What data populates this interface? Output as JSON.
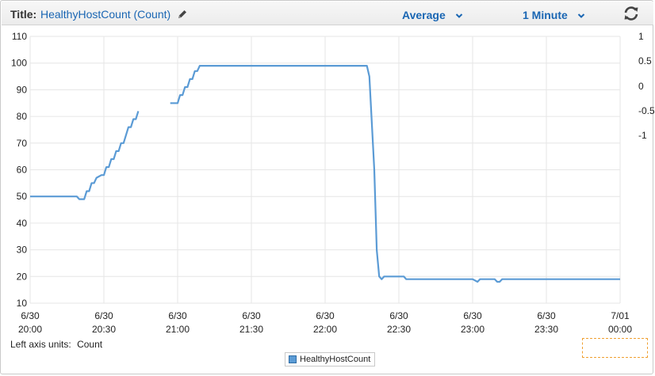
{
  "header": {
    "title_label": "Title:",
    "title_value": "HealthyHostCount (Count)",
    "statistic": "Average",
    "period": "1 Minute",
    "icons": [
      "pencil-icon",
      "chevron-down-icon",
      "refresh-icon"
    ]
  },
  "footer": {
    "units_label": "Left axis units:",
    "units_value": "Count"
  },
  "legend": {
    "label": "HealthyHostCount"
  },
  "colors": {
    "series": "#5b9bd5",
    "link": "#1a66b3",
    "grid": "#e6e6e6"
  },
  "chart_data": {
    "type": "line",
    "title": "HealthyHostCount (Count)",
    "ylabel": "Count",
    "ylim": [
      10,
      110
    ],
    "yticks": [
      "10",
      "20",
      "30",
      "40",
      "50",
      "60",
      "70",
      "80",
      "90",
      "100",
      "110"
    ],
    "right_yticks": [
      "1",
      "0.5",
      "0",
      "-0.5",
      "-1"
    ],
    "xlim": [
      0,
      240
    ],
    "xticks": [
      {
        "x": 0,
        "top": "6/30",
        "bottom": "20:00"
      },
      {
        "x": 30,
        "top": "6/30",
        "bottom": "20:30"
      },
      {
        "x": 60,
        "top": "6/30",
        "bottom": "21:00"
      },
      {
        "x": 90,
        "top": "6/30",
        "bottom": "21:30"
      },
      {
        "x": 120,
        "top": "6/30",
        "bottom": "22:00"
      },
      {
        "x": 150,
        "top": "6/30",
        "bottom": "22:30"
      },
      {
        "x": 180,
        "top": "6/30",
        "bottom": "23:00"
      },
      {
        "x": 210,
        "top": "6/30",
        "bottom": "23:30"
      },
      {
        "x": 240,
        "top": "7/01",
        "bottom": "00:00"
      }
    ],
    "grid": true,
    "legend_position": "bottom-center",
    "series": [
      {
        "name": "HealthyHostCount",
        "segments": [
          [
            [
              0,
              50
            ],
            [
              19,
              50
            ],
            [
              20,
              49
            ],
            [
              22,
              49
            ],
            [
              23,
              52
            ],
            [
              24,
              52
            ],
            [
              25,
              55
            ],
            [
              26,
              55
            ],
            [
              27,
              57
            ],
            [
              29,
              58
            ],
            [
              30,
              58
            ],
            [
              31,
              61
            ],
            [
              32,
              61
            ],
            [
              33,
              64
            ],
            [
              34,
              64
            ],
            [
              35,
              67
            ],
            [
              36,
              67
            ],
            [
              37,
              70
            ],
            [
              38,
              70
            ],
            [
              39,
              73
            ],
            [
              40,
              76
            ],
            [
              41,
              76
            ],
            [
              42,
              79
            ],
            [
              43,
              79
            ],
            [
              44,
              82
            ]
          ],
          [
            [
              57,
              85
            ],
            [
              60,
              85
            ],
            [
              61,
              88
            ],
            [
              62,
              88
            ],
            [
              63,
              91
            ],
            [
              64,
              91
            ],
            [
              65,
              94
            ],
            [
              66,
              94
            ],
            [
              67,
              97
            ],
            [
              68,
              97
            ],
            [
              69,
              99
            ],
            [
              74,
              99
            ],
            [
              90,
              99
            ],
            [
              120,
              99
            ],
            [
              137,
              99
            ],
            [
              138,
              95
            ],
            [
              140,
              60
            ],
            [
              141,
              30
            ],
            [
              142,
              20
            ],
            [
              143,
              19
            ],
            [
              144,
              20
            ],
            [
              150,
              20
            ],
            [
              152,
              20
            ],
            [
              153,
              19
            ],
            [
              170,
              19
            ],
            [
              180,
              19
            ],
            [
              182,
              18
            ],
            [
              183,
              19
            ],
            [
              189,
              19
            ],
            [
              190,
              18
            ],
            [
              191,
              18
            ],
            [
              192,
              19
            ],
            [
              210,
              19
            ],
            [
              220,
              19
            ],
            [
              240,
              19
            ]
          ]
        ]
      }
    ]
  }
}
